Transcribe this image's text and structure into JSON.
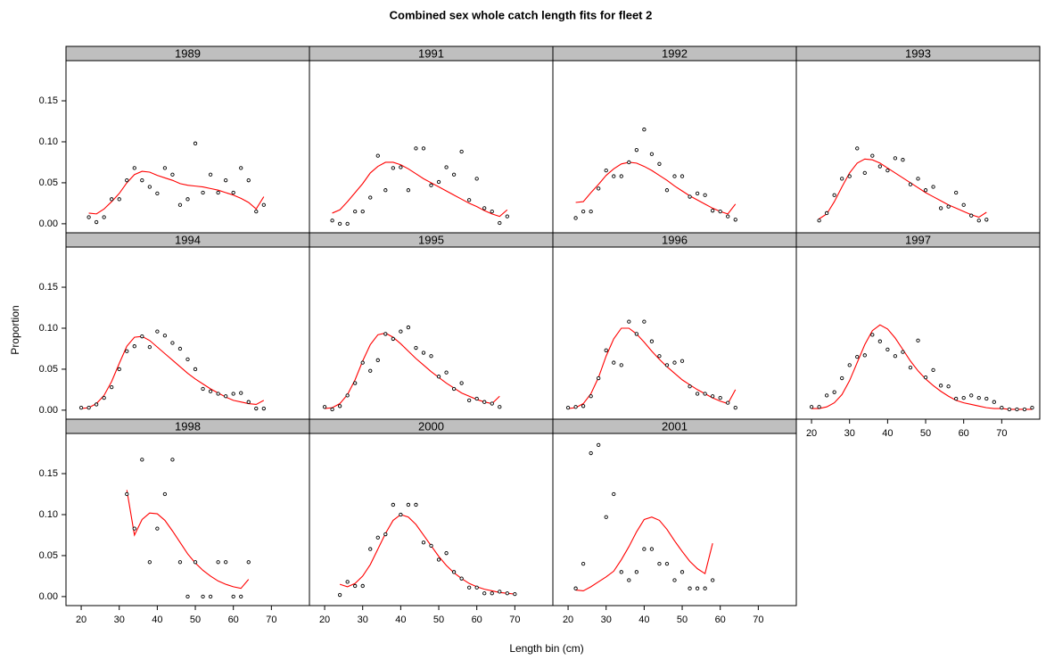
{
  "chart_data": {
    "type": "lattice",
    "title": "Combined sex whole catch length fits for fleet 2",
    "x_label": "Length bin (cm)",
    "y_label": "Proportion",
    "xlim": [
      16,
      80
    ],
    "xticks": [
      20,
      30,
      40,
      50,
      60,
      70
    ],
    "ylim": [
      -0.011,
      0.199
    ],
    "yticks": [
      {
        "value": 0,
        "label": "0.00"
      },
      {
        "value": 0.05,
        "label": "0.05"
      },
      {
        "value": 0.1,
        "label": "0.10"
      },
      {
        "value": 0.15,
        "label": "0.15"
      }
    ],
    "observed_color": "#000000",
    "expected_color": "#ff0000",
    "strip_color": "#bfbfbf",
    "panels": [
      {
        "title": "1989",
        "x": [
          22,
          24,
          26,
          28,
          30,
          32,
          34,
          36,
          38,
          40,
          42,
          44,
          46,
          48,
          50,
          52,
          54,
          56,
          58,
          60,
          62,
          64,
          66,
          68
        ],
        "observed": [
          0.008,
          0.002,
          0.008,
          0.03,
          0.03,
          0.053,
          0.068,
          0.053,
          0.045,
          0.037,
          0.068,
          0.06,
          0.023,
          0.03,
          0.098,
          0.038,
          0.06,
          0.038,
          0.053,
          0.038,
          0.068,
          0.053,
          0.015,
          0.023
        ],
        "expected": [
          0.013,
          0.012,
          0.018,
          0.027,
          0.037,
          0.05,
          0.06,
          0.064,
          0.063,
          0.059,
          0.056,
          0.053,
          0.049,
          0.047,
          0.046,
          0.045,
          0.043,
          0.041,
          0.038,
          0.035,
          0.031,
          0.026,
          0.018,
          0.033
        ]
      },
      {
        "title": "1991",
        "x": [
          22,
          24,
          26,
          28,
          30,
          32,
          34,
          36,
          38,
          40,
          42,
          44,
          46,
          48,
          50,
          52,
          54,
          56,
          58,
          60,
          62,
          64,
          66,
          68
        ],
        "observed": [
          0.004,
          0,
          0,
          0.015,
          0.015,
          0.032,
          0.083,
          0.041,
          0.068,
          0.069,
          0.041,
          0.092,
          0.092,
          0.047,
          0.051,
          0.069,
          0.06,
          0.088,
          0.029,
          0.055,
          0.019,
          0.015,
          0.001,
          0.009
        ],
        "expected": [
          0.013,
          0.017,
          0.027,
          0.038,
          0.049,
          0.062,
          0.07,
          0.075,
          0.075,
          0.072,
          0.067,
          0.061,
          0.055,
          0.05,
          0.045,
          0.04,
          0.035,
          0.03,
          0.025,
          0.021,
          0.016,
          0.012,
          0.009,
          0.017
        ]
      },
      {
        "title": "1992",
        "x": [
          22,
          24,
          26,
          28,
          30,
          32,
          34,
          36,
          38,
          40,
          42,
          44,
          46,
          48,
          50,
          52,
          54,
          56,
          58,
          60,
          62,
          64
        ],
        "observed": [
          0.007,
          0.015,
          0.015,
          0.043,
          0.065,
          0.058,
          0.058,
          0.075,
          0.09,
          0.115,
          0.085,
          0.073,
          0.041,
          0.058,
          0.058,
          0.033,
          0.037,
          0.035,
          0.016,
          0.015,
          0.009,
          0.005
        ],
        "expected": [
          0.026,
          0.027,
          0.038,
          0.048,
          0.059,
          0.067,
          0.073,
          0.075,
          0.074,
          0.07,
          0.065,
          0.059,
          0.053,
          0.046,
          0.04,
          0.034,
          0.029,
          0.024,
          0.019,
          0.015,
          0.012,
          0.024
        ]
      },
      {
        "title": "1993",
        "x": [
          22,
          24,
          26,
          28,
          30,
          32,
          34,
          36,
          38,
          40,
          42,
          44,
          46,
          48,
          50,
          52,
          54,
          56,
          58,
          60,
          62,
          64,
          66
        ],
        "observed": [
          0.004,
          0.013,
          0.035,
          0.055,
          0.058,
          0.092,
          0.062,
          0.083,
          0.07,
          0.065,
          0.08,
          0.078,
          0.048,
          0.055,
          0.041,
          0.045,
          0.019,
          0.021,
          0.038,
          0.023,
          0.01,
          0.004,
          0.005
        ],
        "expected": [
          0.006,
          0.012,
          0.027,
          0.045,
          0.062,
          0.074,
          0.079,
          0.078,
          0.074,
          0.068,
          0.062,
          0.056,
          0.05,
          0.044,
          0.038,
          0.033,
          0.028,
          0.023,
          0.019,
          0.015,
          0.011,
          0.008,
          0.014
        ]
      },
      {
        "title": "1994",
        "x": [
          20,
          22,
          24,
          26,
          28,
          30,
          32,
          34,
          36,
          38,
          40,
          42,
          44,
          46,
          48,
          50,
          52,
          54,
          56,
          58,
          60,
          62,
          64,
          66,
          68
        ],
        "observed": [
          0.003,
          0.003,
          0.007,
          0.015,
          0.028,
          0.05,
          0.072,
          0.078,
          0.09,
          0.077,
          0.096,
          0.091,
          0.082,
          0.075,
          0.062,
          0.05,
          0.026,
          0.023,
          0.02,
          0.017,
          0.02,
          0.021,
          0.01,
          0.002,
          0.002
        ],
        "expected": [
          0.002,
          0.003,
          0.008,
          0.018,
          0.035,
          0.057,
          0.078,
          0.089,
          0.09,
          0.085,
          0.077,
          0.069,
          0.061,
          0.053,
          0.045,
          0.038,
          0.032,
          0.026,
          0.021,
          0.016,
          0.012,
          0.01,
          0.008,
          0.007,
          0.012
        ]
      },
      {
        "title": "1995",
        "x": [
          20,
          22,
          24,
          26,
          28,
          30,
          32,
          34,
          36,
          38,
          40,
          42,
          44,
          46,
          48,
          50,
          52,
          54,
          56,
          58,
          60,
          62,
          64,
          66
        ],
        "observed": [
          0.004,
          0.001,
          0.005,
          0.018,
          0.033,
          0.058,
          0.048,
          0.061,
          0.093,
          0.087,
          0.096,
          0.101,
          0.076,
          0.07,
          0.066,
          0.041,
          0.046,
          0.026,
          0.033,
          0.012,
          0.014,
          0.01,
          0.008,
          0.004
        ],
        "expected": [
          0.002,
          0.003,
          0.008,
          0.019,
          0.037,
          0.06,
          0.08,
          0.092,
          0.094,
          0.089,
          0.081,
          0.072,
          0.063,
          0.055,
          0.047,
          0.04,
          0.033,
          0.027,
          0.021,
          0.017,
          0.013,
          0.01,
          0.008,
          0.017
        ]
      },
      {
        "title": "1996",
        "x": [
          20,
          22,
          24,
          26,
          28,
          30,
          32,
          34,
          36,
          38,
          40,
          42,
          44,
          46,
          48,
          50,
          52,
          54,
          56,
          58,
          60,
          62,
          64
        ],
        "observed": [
          0.003,
          0.004,
          0.005,
          0.017,
          0.039,
          0.073,
          0.058,
          0.055,
          0.108,
          0.093,
          0.108,
          0.084,
          0.066,
          0.055,
          0.058,
          0.06,
          0.029,
          0.02,
          0.02,
          0.017,
          0.015,
          0.009,
          0.003
        ],
        "expected": [
          0.002,
          0.003,
          0.008,
          0.02,
          0.04,
          0.066,
          0.087,
          0.1,
          0.1,
          0.093,
          0.083,
          0.072,
          0.062,
          0.053,
          0.045,
          0.037,
          0.031,
          0.025,
          0.02,
          0.015,
          0.011,
          0.008,
          0.025
        ]
      },
      {
        "title": "1997",
        "x": [
          20,
          22,
          24,
          26,
          28,
          30,
          32,
          34,
          36,
          38,
          40,
          42,
          44,
          46,
          48,
          50,
          52,
          54,
          56,
          58,
          60,
          62,
          64,
          66,
          68,
          70,
          72,
          74,
          76,
          78
        ],
        "observed": [
          0.004,
          0.004,
          0.018,
          0.022,
          0.039,
          0.055,
          0.065,
          0.067,
          0.092,
          0.084,
          0.074,
          0.066,
          0.071,
          0.052,
          0.085,
          0.04,
          0.049,
          0.03,
          0.029,
          0.014,
          0.015,
          0.018,
          0.015,
          0.014,
          0.01,
          0.003,
          0.001,
          0.001,
          0.001,
          0.003
        ],
        "expected": [
          0.002,
          0.002,
          0.004,
          0.009,
          0.019,
          0.036,
          0.058,
          0.08,
          0.097,
          0.104,
          0.099,
          0.088,
          0.074,
          0.06,
          0.048,
          0.038,
          0.03,
          0.023,
          0.017,
          0.012,
          0.009,
          0.007,
          0.005,
          0.003,
          0.002,
          0.002,
          0.001,
          0.001,
          0.001,
          0.001
        ]
      },
      {
        "title": "1998",
        "x": [
          32,
          34,
          36,
          38,
          40,
          42,
          44,
          46,
          48,
          50,
          52,
          54,
          56,
          58,
          60,
          62,
          64
        ],
        "observed": [
          0.125,
          0.083,
          0.167,
          0.042,
          0.083,
          0.125,
          0.167,
          0.042,
          0,
          0.042,
          0,
          0,
          0.042,
          0.042,
          0,
          0,
          0.042
        ],
        "expected": [
          0.13,
          0.075,
          0.094,
          0.102,
          0.101,
          0.093,
          0.08,
          0.066,
          0.052,
          0.041,
          0.032,
          0.025,
          0.019,
          0.015,
          0.012,
          0.01,
          0.021
        ]
      },
      {
        "title": "2000",
        "x": [
          24,
          26,
          28,
          30,
          32,
          34,
          36,
          38,
          40,
          42,
          44,
          46,
          48,
          50,
          52,
          54,
          56,
          58,
          60,
          62,
          64,
          66,
          68,
          70
        ],
        "observed": [
          0.002,
          0.018,
          0.013,
          0.013,
          0.058,
          0.072,
          0.076,
          0.112,
          0.1,
          0.112,
          0.112,
          0.066,
          0.062,
          0.045,
          0.053,
          0.03,
          0.022,
          0.011,
          0.011,
          0.004,
          0.004,
          0.006,
          0.004,
          0.003
        ],
        "expected": [
          0.015,
          0.012,
          0.016,
          0.025,
          0.039,
          0.058,
          0.077,
          0.093,
          0.1,
          0.097,
          0.088,
          0.075,
          0.062,
          0.049,
          0.038,
          0.029,
          0.022,
          0.016,
          0.012,
          0.009,
          0.007,
          0.005,
          0.004,
          0.003
        ]
      },
      {
        "title": "2001",
        "x": [
          22,
          24,
          26,
          28,
          30,
          32,
          34,
          36,
          38,
          40,
          42,
          44,
          46,
          48,
          50,
          52,
          54,
          56,
          58
        ],
        "observed": [
          0.01,
          0.04,
          0.175,
          0.185,
          0.097,
          0.125,
          0.03,
          0.02,
          0.03,
          0.058,
          0.058,
          0.04,
          0.04,
          0.02,
          0.03,
          0.01,
          0.01,
          0.01,
          0.02
        ],
        "expected": [
          0.008,
          0.007,
          0.012,
          0.018,
          0.024,
          0.031,
          0.045,
          0.061,
          0.079,
          0.094,
          0.097,
          0.093,
          0.082,
          0.068,
          0.055,
          0.043,
          0.034,
          0.028,
          0.065
        ]
      }
    ]
  }
}
